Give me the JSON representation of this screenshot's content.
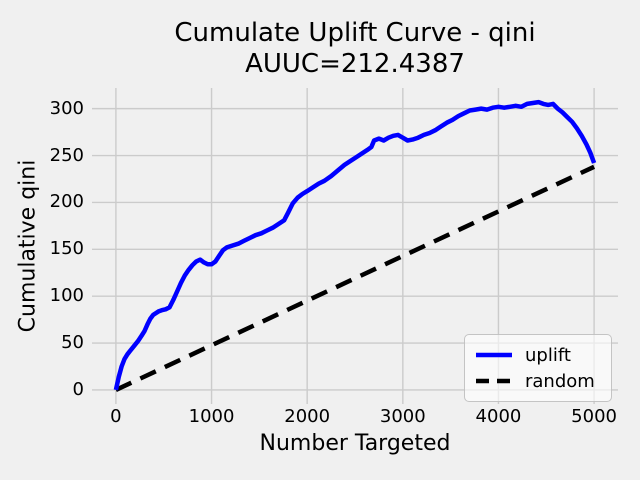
{
  "chart_data": {
    "type": "line",
    "title_line1": "Cumulate Uplift Curve - qini",
    "title_line2": "AUUC=212.4387",
    "auuc_value": 212.4387,
    "xlabel": "Number Targeted",
    "ylabel": "Cumulative qini",
    "x_ticks": [
      0,
      1000,
      2000,
      3000,
      4000,
      5000
    ],
    "y_ticks": [
      0,
      50,
      100,
      150,
      200,
      250,
      300
    ],
    "xlim": [
      -250,
      5250
    ],
    "ylim": [
      -15,
      322
    ],
    "grid": true,
    "grid_color": "#cbcbcb",
    "background_color": "#f0f0f0",
    "legend_position": "lower right",
    "series": [
      {
        "name": "uplift",
        "color": "#0000ff",
        "style": "solid",
        "points": [
          [
            0,
            0
          ],
          [
            30,
            14
          ],
          [
            60,
            25
          ],
          [
            90,
            33
          ],
          [
            120,
            38
          ],
          [
            150,
            42
          ],
          [
            190,
            47
          ],
          [
            230,
            52
          ],
          [
            270,
            58
          ],
          [
            300,
            63
          ],
          [
            330,
            70
          ],
          [
            360,
            76
          ],
          [
            390,
            80
          ],
          [
            420,
            82
          ],
          [
            450,
            84
          ],
          [
            480,
            85
          ],
          [
            520,
            86
          ],
          [
            560,
            88
          ],
          [
            600,
            96
          ],
          [
            640,
            105
          ],
          [
            680,
            114
          ],
          [
            720,
            122
          ],
          [
            760,
            128
          ],
          [
            800,
            133
          ],
          [
            840,
            137
          ],
          [
            880,
            139
          ],
          [
            920,
            136
          ],
          [
            960,
            134
          ],
          [
            1000,
            134
          ],
          [
            1040,
            137
          ],
          [
            1080,
            143
          ],
          [
            1120,
            149
          ],
          [
            1160,
            152
          ],
          [
            1220,
            154
          ],
          [
            1280,
            156
          ],
          [
            1340,
            159
          ],
          [
            1400,
            162
          ],
          [
            1460,
            165
          ],
          [
            1520,
            167
          ],
          [
            1580,
            170
          ],
          [
            1640,
            173
          ],
          [
            1700,
            177
          ],
          [
            1760,
            181
          ],
          [
            1800,
            189
          ],
          [
            1850,
            199
          ],
          [
            1900,
            205
          ],
          [
            1950,
            209
          ],
          [
            2000,
            212
          ],
          [
            2060,
            216
          ],
          [
            2120,
            220
          ],
          [
            2180,
            223
          ],
          [
            2250,
            228
          ],
          [
            2320,
            234
          ],
          [
            2390,
            240
          ],
          [
            2450,
            244
          ],
          [
            2510,
            248
          ],
          [
            2570,
            252
          ],
          [
            2630,
            256
          ],
          [
            2670,
            259
          ],
          [
            2700,
            266
          ],
          [
            2750,
            268
          ],
          [
            2800,
            266
          ],
          [
            2850,
            269
          ],
          [
            2900,
            271
          ],
          [
            2950,
            272
          ],
          [
            3000,
            269
          ],
          [
            3050,
            266
          ],
          [
            3100,
            267
          ],
          [
            3160,
            269
          ],
          [
            3220,
            272
          ],
          [
            3280,
            274
          ],
          [
            3340,
            277
          ],
          [
            3400,
            281
          ],
          [
            3460,
            285
          ],
          [
            3520,
            288
          ],
          [
            3580,
            292
          ],
          [
            3640,
            295
          ],
          [
            3700,
            298
          ],
          [
            3760,
            299
          ],
          [
            3820,
            300
          ],
          [
            3880,
            299
          ],
          [
            3940,
            301
          ],
          [
            4000,
            302
          ],
          [
            4060,
            301
          ],
          [
            4120,
            302
          ],
          [
            4180,
            303
          ],
          [
            4240,
            302
          ],
          [
            4300,
            305
          ],
          [
            4360,
            306
          ],
          [
            4420,
            307
          ],
          [
            4470,
            305
          ],
          [
            4520,
            304
          ],
          [
            4570,
            305
          ],
          [
            4620,
            300
          ],
          [
            4670,
            296
          ],
          [
            4720,
            291
          ],
          [
            4770,
            286
          ],
          [
            4820,
            279
          ],
          [
            4870,
            271
          ],
          [
            4920,
            262
          ],
          [
            4960,
            253
          ],
          [
            5000,
            242
          ]
        ]
      },
      {
        "name": "random",
        "color": "#000000",
        "style": "dashed",
        "points": [
          [
            0,
            0
          ],
          [
            5000,
            238
          ]
        ]
      }
    ]
  },
  "legend": {
    "items": [
      {
        "label": "uplift",
        "sample": "solid-blue-line"
      },
      {
        "label": "random",
        "sample": "dashed-black-line"
      }
    ]
  }
}
